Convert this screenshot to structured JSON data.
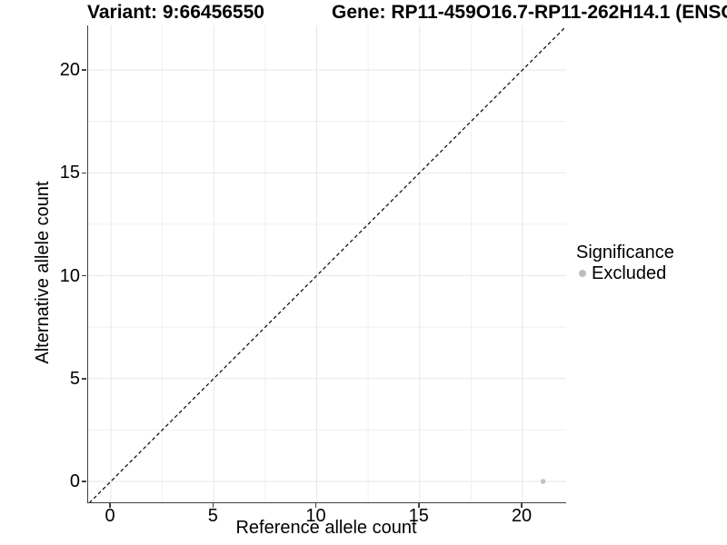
{
  "figure": {
    "title_left": "Variant: 9:66456550",
    "title_right": "Gene: RP11-459O16.7-RP11-262H14.1 (ENSG0",
    "xlabel": "Reference allele count",
    "ylabel": "Alternative allele count"
  },
  "legend": {
    "title": "Significance",
    "items": [
      {
        "label": "Excluded",
        "color": "#bdbdbd"
      }
    ]
  },
  "chart_data": {
    "type": "scatter",
    "title": "Variant: 9:66456550",
    "subtitle": "Gene: RP11-459O16.7-RP11-262H14.1 (ENSG0",
    "xlabel": "Reference allele count",
    "ylabel": "Alternative allele count",
    "xlim": [
      -1.05,
      22.05
    ],
    "ylim": [
      -1.05,
      22.05
    ],
    "x_ticks": [
      0,
      5,
      10,
      15,
      20
    ],
    "y_ticks": [
      0,
      5,
      10,
      15,
      20
    ],
    "grid": true,
    "grid_interval": 2.5,
    "legend_position": "right",
    "reference_line": {
      "kind": "identity",
      "equation": "y = x",
      "style": "dashed",
      "color": "#000000"
    },
    "series": [
      {
        "name": "Excluded",
        "color": "#bdbdbd",
        "points": [
          {
            "x": 21,
            "y": 0
          }
        ]
      }
    ],
    "colors": {
      "grid_minor": "#efefef",
      "grid_major": "#e7e7e7",
      "axis": "#404040",
      "point": "#c2c2c2",
      "text": "#000000"
    }
  }
}
